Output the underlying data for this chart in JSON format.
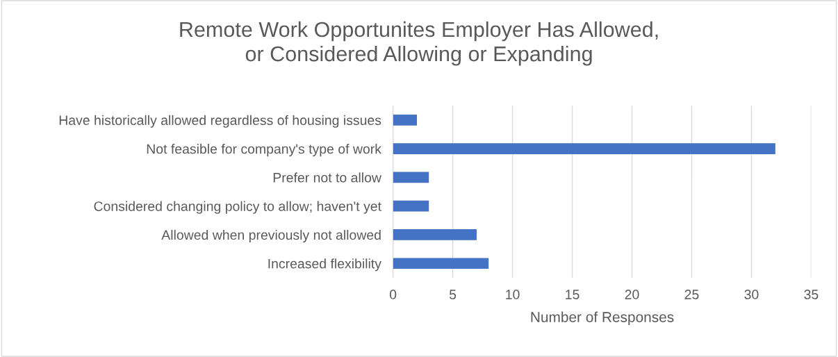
{
  "chart_data": {
    "type": "bar",
    "orientation": "horizontal",
    "title": "Remote Work Opportunites Employer Has Allowed,\nor Considered Allowing or Expanding",
    "xlabel": "Number of Responses",
    "categories": [
      "Have historically allowed regardless of housing issues",
      "Not feasible for company's type of work",
      "Prefer not to allow",
      "Considered changing policy to allow; haven't yet",
      "Allowed when previously not allowed",
      "Increased flexibility"
    ],
    "values": [
      2,
      32,
      3,
      3,
      7,
      8
    ],
    "color": "#4472c4",
    "xlim": [
      0,
      35
    ],
    "xticks": [
      0,
      5,
      10,
      15,
      20,
      25,
      30,
      35
    ],
    "grid": "x",
    "legend": false
  }
}
